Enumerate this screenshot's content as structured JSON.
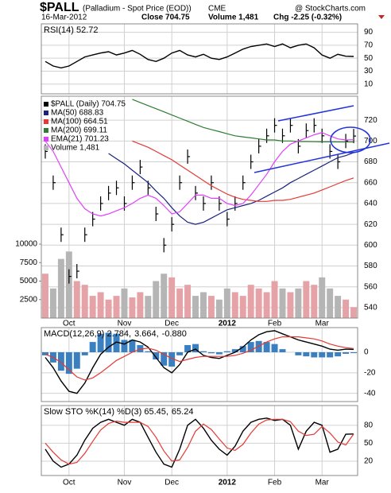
{
  "header": {
    "symbol": "$PALL",
    "name": "(Palladium - Spot Price (EOD))",
    "exchange": "CME",
    "date": "16-Mar-2012",
    "close": "Close 704.75",
    "volume": "Volume 1,481",
    "chg": "Chg -2.25 (-0.32%)",
    "source": "@ StockCharts.com"
  },
  "chart_data": [
    {
      "type": "rsi",
      "ylim": [
        -5,
        103
      ],
      "yticks": [
        10,
        30,
        50,
        70,
        90
      ],
      "grid": true,
      "series": [
        {
          "name": "RSI(14) 52.72",
          "type": "line",
          "color": "#000000",
          "values": [
            45,
            38,
            35,
            38,
            45,
            52,
            55,
            58,
            60,
            55,
            58,
            62,
            56,
            48,
            45,
            50,
            58,
            62,
            55,
            52,
            56,
            50,
            48,
            52,
            58,
            64,
            68,
            70,
            72,
            68,
            72,
            66,
            70,
            72,
            66,
            55,
            50,
            56,
            53,
            52.72
          ]
        }
      ]
    },
    {
      "type": "price",
      "ylim": [
        530,
        743
      ],
      "yticks": [
        540,
        560,
        580,
        600,
        620,
        640,
        660,
        680,
        700,
        720
      ],
      "y2lim": [
        0,
        30000
      ],
      "y2ticks": [
        2500,
        5000,
        7500,
        10000
      ],
      "grid": true,
      "categories": [
        null,
        null,
        null,
        "Oct",
        null,
        null,
        null,
        null,
        null,
        null,
        "Nov",
        null,
        null,
        null,
        null,
        null,
        "Dec",
        null,
        null,
        null,
        null,
        null,
        null,
        "2012",
        null,
        null,
        null,
        null,
        null,
        "Feb",
        null,
        null,
        null,
        null,
        null,
        "Mar",
        null,
        null,
        null,
        null
      ],
      "series": [
        {
          "name": "$PALL (Daily) 704.75",
          "type": "price",
          "color": "#000000",
          "values": [
            690,
            660,
            610,
            570,
            575,
            610,
            625,
            640,
            650,
            655,
            640,
            660,
            675,
            655,
            630,
            600,
            620,
            660,
            685,
            650,
            640,
            660,
            640,
            625,
            640,
            660,
            680,
            695,
            705,
            715,
            705,
            715,
            695,
            710,
            715,
            705,
            690,
            680,
            700,
            704.75
          ]
        },
        {
          "name": "MA(50) 688.83",
          "type": "line",
          "color": "#1a237e",
          "values": [
            null,
            null,
            null,
            null,
            null,
            null,
            null,
            null,
            688,
            683,
            678,
            672,
            666,
            660,
            652,
            645,
            636,
            628,
            622,
            620,
            622,
            626,
            630,
            634,
            636,
            638,
            640,
            643,
            647,
            651,
            655,
            660,
            664,
            668,
            672,
            676,
            680,
            684,
            686,
            688.83
          ]
        },
        {
          "name": "MA(100) 664.51",
          "type": "line",
          "color": "#e53935",
          "values": [
            null,
            null,
            null,
            null,
            null,
            null,
            null,
            null,
            null,
            null,
            null,
            700,
            697,
            694,
            690,
            686,
            682,
            677,
            672,
            667,
            662,
            657,
            653,
            649,
            646,
            644,
            643,
            642,
            642,
            643,
            643,
            644,
            646,
            648,
            650,
            653,
            656,
            659,
            662,
            664.51
          ]
        },
        {
          "name": "MA(200) 699.11",
          "type": "line",
          "color": "#2e7d32",
          "values": [
            null,
            null,
            null,
            null,
            null,
            null,
            null,
            null,
            null,
            null,
            null,
            740,
            737,
            734,
            731,
            728,
            725,
            722,
            719,
            716,
            713,
            711,
            709,
            707,
            705,
            704,
            703,
            702,
            701,
            701,
            700,
            700,
            699.5,
            699.5,
            699.3,
            699.2,
            699.2,
            699.1,
            699.1,
            699.11
          ]
        },
        {
          "name": "EMA(21) 701.23",
          "type": "line",
          "color": "#e040fb",
          "values": [
            700,
            690,
            675,
            660,
            645,
            635,
            630,
            628,
            630,
            633,
            636,
            640,
            645,
            648,
            645,
            638,
            630,
            632,
            640,
            648,
            648,
            645,
            645,
            640,
            638,
            640,
            648,
            658,
            668,
            680,
            690,
            697,
            700,
            703,
            706,
            708,
            705,
            702,
            701,
            701.23
          ]
        },
        {
          "name": "Volume 1,481",
          "type": "volume",
          "axis": "y2",
          "color": "#e5a3a8",
          "down_color": "#b5b5b5",
          "values": [
            6000,
            4000,
            8000,
            9000,
            5000,
            4500,
            3000,
            3500,
            2500,
            3000,
            4000,
            2800,
            3500,
            3000,
            5000,
            6000,
            5500,
            4000,
            4500,
            3000,
            3500,
            3000,
            2500,
            4000,
            3500,
            3000,
            4500,
            4000,
            3500,
            5000,
            4000,
            3500,
            4000,
            5000,
            4500,
            5500,
            4000,
            3000,
            2500,
            1481
          ]
        }
      ]
    },
    {
      "type": "macd",
      "ylim": [
        -48,
        24
      ],
      "yticks": [
        -40,
        -20,
        0
      ],
      "grid": true,
      "series": [
        {
          "name": "MACD(12,26,9) 2.784,",
          "type": "line",
          "color": "#000000",
          "values": [
            -5,
            -15,
            -28,
            -38,
            -40,
            -30,
            -15,
            -2,
            5,
            10,
            8,
            12,
            10,
            5,
            -5,
            -15,
            -20,
            -12,
            0,
            3,
            -3,
            -5,
            -6,
            -3,
            0,
            5,
            12,
            17,
            20,
            21,
            18,
            15,
            12,
            10,
            8,
            6,
            3,
            2,
            3,
            2.784
          ]
        },
        {
          "name": "3.664,",
          "type": "line",
          "color": "#e53935",
          "values": [
            -2,
            -5,
            -10,
            -17,
            -24,
            -27,
            -25,
            -20,
            -14,
            -8,
            -4,
            0,
            3,
            4,
            2,
            -2,
            -6,
            -9,
            -7,
            -5,
            -4,
            -4,
            -4,
            -4,
            -3,
            -1,
            2,
            6,
            10,
            13,
            15,
            15,
            15,
            14,
            13,
            11,
            8,
            6,
            4.5,
            3.664
          ]
        },
        {
          "name": "-0.880",
          "type": "histogram",
          "color": "#3a7fc0",
          "values": [
            -3,
            -10,
            -18,
            -21,
            -16,
            -3,
            10,
            18,
            19,
            18,
            12,
            12,
            7,
            1,
            -7,
            -13,
            -14,
            -3,
            7,
            8,
            1,
            -1,
            -2,
            1,
            3,
            6,
            10,
            11,
            10,
            8,
            3,
            0,
            -3,
            -4,
            -5,
            -5,
            -5,
            -4,
            -1.5,
            -0.88
          ]
        }
      ]
    },
    {
      "type": "sto",
      "ylim": [
        -4,
        113
      ],
      "yticks": [
        20,
        50,
        80
      ],
      "grid": true,
      "series": [
        {
          "name": "Slow STO %K(14) %D(3) 65.45,",
          "type": "line",
          "color": "#000000",
          "values": [
            40,
            20,
            10,
            15,
            30,
            55,
            75,
            85,
            90,
            85,
            80,
            90,
            85,
            60,
            35,
            15,
            10,
            40,
            80,
            90,
            75,
            55,
            40,
            30,
            45,
            70,
            85,
            90,
            92,
            88,
            90,
            80,
            40,
            70,
            85,
            80,
            35,
            40,
            65,
            65.45
          ]
        },
        {
          "name": "65.24",
          "type": "line",
          "color": "#e53935",
          "values": [
            50,
            35,
            22,
            15,
            18,
            33,
            53,
            72,
            83,
            87,
            85,
            85,
            85,
            78,
            60,
            37,
            20,
            22,
            43,
            70,
            82,
            73,
            57,
            42,
            38,
            48,
            67,
            82,
            89,
            90,
            90,
            86,
            70,
            63,
            65,
            78,
            67,
            52,
            47,
            65.24
          ]
        }
      ]
    }
  ]
}
